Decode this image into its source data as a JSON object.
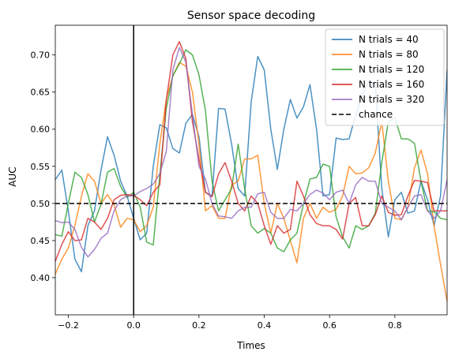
{
  "chart_data": {
    "type": "line",
    "title": "Sensor space decoding",
    "xlabel": "Times",
    "ylabel": "AUC",
    "xlim": [
      -0.24,
      0.96
    ],
    "ylim": [
      0.35,
      0.74
    ],
    "xticks": [
      -0.2,
      0.0,
      0.2,
      0.4,
      0.6,
      0.8
    ],
    "xtick_labels": [
      "−0.2",
      "0.0",
      "0.2",
      "0.4",
      "0.6",
      "0.8"
    ],
    "yticks": [
      0.4,
      0.45,
      0.5,
      0.55,
      0.6,
      0.65,
      0.7
    ],
    "ytick_labels": [
      "0.40",
      "0.45",
      "0.50",
      "0.55",
      "0.60",
      "0.65",
      "0.70"
    ],
    "grid": false,
    "legend_position": "top-right",
    "x": [
      -0.24,
      -0.22,
      -0.2,
      -0.18,
      -0.16,
      -0.14,
      -0.12,
      -0.1,
      -0.08,
      -0.06,
      -0.04,
      -0.02,
      0.0,
      0.02,
      0.04,
      0.06,
      0.08,
      0.1,
      0.12,
      0.14,
      0.16,
      0.18,
      0.2,
      0.22,
      0.24,
      0.26,
      0.28,
      0.3,
      0.32,
      0.34,
      0.36,
      0.38,
      0.4,
      0.42,
      0.44,
      0.46,
      0.48,
      0.5,
      0.52,
      0.54,
      0.56,
      0.58,
      0.6,
      0.62,
      0.64,
      0.66,
      0.68,
      0.7,
      0.72,
      0.74,
      0.76,
      0.78,
      0.8,
      0.82,
      0.84,
      0.86,
      0.88,
      0.9,
      0.92,
      0.94,
      0.96
    ],
    "series": [
      {
        "name": "N trials = 40",
        "color": "#1f77b4",
        "values": [
          0.532,
          0.545,
          0.49,
          0.425,
          0.408,
          0.47,
          0.49,
          0.545,
          0.59,
          0.565,
          0.53,
          0.51,
          0.48,
          0.451,
          0.46,
          0.55,
          0.606,
          0.602,
          0.574,
          0.568,
          0.608,
          0.62,
          0.59,
          0.515,
          0.51,
          0.628,
          0.627,
          0.58,
          0.52,
          0.51,
          0.637,
          0.698,
          0.68,
          0.6,
          0.546,
          0.6,
          0.64,
          0.615,
          0.63,
          0.66,
          0.6,
          0.51,
          0.512,
          0.588,
          0.586,
          0.587,
          0.62,
          0.646,
          0.664,
          0.66,
          0.52,
          0.455,
          0.505,
          0.515,
          0.487,
          0.49,
          0.53,
          0.505,
          0.47,
          0.51,
          0.68
        ]
      },
      {
        "name": "N trials = 80",
        "color": "#ff7f0e",
        "values": [
          0.405,
          0.425,
          0.44,
          0.47,
          0.51,
          0.54,
          0.53,
          0.5,
          0.512,
          0.498,
          0.468,
          0.48,
          0.478,
          0.462,
          0.47,
          0.495,
          0.58,
          0.64,
          0.672,
          0.69,
          0.685,
          0.65,
          0.58,
          0.49,
          0.497,
          0.48,
          0.48,
          0.525,
          0.53,
          0.56,
          0.56,
          0.565,
          0.5,
          0.46,
          0.5,
          0.48,
          0.45,
          0.42,
          0.48,
          0.5,
          0.48,
          0.495,
          0.488,
          0.492,
          0.51,
          0.55,
          0.54,
          0.541,
          0.548,
          0.568,
          0.61,
          0.53,
          0.48,
          0.478,
          0.495,
          0.548,
          0.572,
          0.54,
          0.47,
          0.418,
          0.368
        ]
      },
      {
        "name": "N trials = 120",
        "color": "#2ca02c",
        "values": [
          0.458,
          0.456,
          0.5,
          0.542,
          0.535,
          0.512,
          0.475,
          0.499,
          0.542,
          0.547,
          0.523,
          0.508,
          0.515,
          0.495,
          0.448,
          0.444,
          0.538,
          0.628,
          0.672,
          0.688,
          0.707,
          0.7,
          0.673,
          0.625,
          0.53,
          0.49,
          0.505,
          0.52,
          0.58,
          0.52,
          0.47,
          0.46,
          0.466,
          0.46,
          0.44,
          0.435,
          0.451,
          0.46,
          0.499,
          0.533,
          0.535,
          0.553,
          0.55,
          0.482,
          0.455,
          0.44,
          0.47,
          0.465,
          0.47,
          0.487,
          0.555,
          0.61,
          0.615,
          0.587,
          0.587,
          0.581,
          0.53,
          0.49,
          0.489,
          0.48,
          0.478
        ]
      },
      {
        "name": "N trials = 160",
        "color": "#d62728",
        "values": [
          0.422,
          0.445,
          0.462,
          0.45,
          0.451,
          0.48,
          0.475,
          0.465,
          0.48,
          0.505,
          0.511,
          0.512,
          0.511,
          0.505,
          0.497,
          0.515,
          0.525,
          0.639,
          0.7,
          0.718,
          0.695,
          0.61,
          0.56,
          0.515,
          0.509,
          0.54,
          0.555,
          0.53,
          0.5,
          0.49,
          0.51,
          0.5,
          0.47,
          0.445,
          0.47,
          0.46,
          0.465,
          0.53,
          0.51,
          0.485,
          0.473,
          0.47,
          0.47,
          0.465,
          0.452,
          0.5,
          0.508,
          0.47,
          0.47,
          0.485,
          0.51,
          0.488,
          0.484,
          0.485,
          0.51,
          0.531,
          0.53,
          0.528,
          0.49,
          0.49,
          0.49
        ]
      },
      {
        "name": "N trials = 320",
        "color": "#9467bd",
        "values": [
          0.477,
          0.474,
          0.475,
          0.465,
          0.441,
          0.428,
          0.438,
          0.453,
          0.46,
          0.49,
          0.505,
          0.51,
          0.51,
          0.516,
          0.52,
          0.526,
          0.54,
          0.57,
          0.68,
          0.71,
          0.69,
          0.62,
          0.55,
          0.533,
          0.5,
          0.483,
          0.482,
          0.48,
          0.49,
          0.495,
          0.495,
          0.513,
          0.515,
          0.488,
          0.48,
          0.48,
          0.492,
          0.49,
          0.5,
          0.512,
          0.518,
          0.514,
          0.505,
          0.515,
          0.518,
          0.5,
          0.525,
          0.535,
          0.53,
          0.53,
          0.5,
          0.495,
          0.49,
          0.478,
          0.495,
          0.51,
          0.512,
          0.49,
          0.48,
          0.49,
          0.532
        ]
      }
    ],
    "reference_lines": [
      {
        "name": "chance",
        "orientation": "horizontal",
        "value": 0.5,
        "style": "dashed",
        "color": "#000000"
      },
      {
        "orientation": "vertical",
        "value": 0.0,
        "style": "solid",
        "color": "#000000"
      }
    ]
  }
}
